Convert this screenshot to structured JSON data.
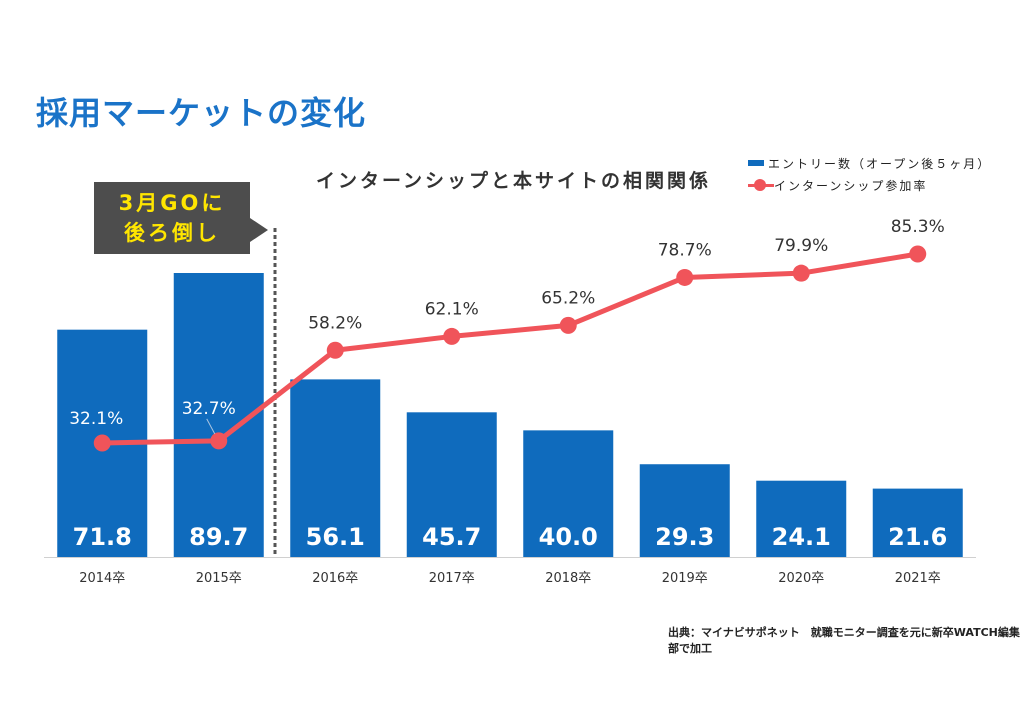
{
  "page": {
    "title": "採用マーケットの変化",
    "source": "出典：マイナビサポネット　就職モニター調査を元に新卒WATCH編集部で加工"
  },
  "callout": {
    "line1": "3月GOに",
    "line2": "後ろ倒し"
  },
  "colors": {
    "bar": "#0f6bbd",
    "line": "#f0545a",
    "title": "#1a73c8",
    "callout_bg": "#4d4d4d",
    "callout_text": "#ffe600"
  },
  "chart_data": {
    "type": "bar",
    "title": "インターンシップと本サイトの相関関係",
    "categories": [
      "2014卒",
      "2015卒",
      "2016卒",
      "2017卒",
      "2018卒",
      "2019卒",
      "2020卒",
      "2021卒"
    ],
    "series": [
      {
        "name": "エントリー数（オープン後５ヶ月）",
        "type": "bar",
        "values": [
          71.8,
          89.7,
          56.1,
          45.7,
          40.0,
          29.3,
          24.1,
          21.6
        ],
        "labels": [
          "71.8",
          "89.7",
          "56.1",
          "45.7",
          "40.0",
          "29.3",
          "24.1",
          "21.6"
        ]
      },
      {
        "name": "インターンシップ参加率",
        "type": "line",
        "values": [
          32.1,
          32.7,
          58.2,
          62.1,
          65.2,
          78.7,
          79.9,
          85.3
        ],
        "labels": [
          "32.1%",
          "32.7%",
          "58.2%",
          "62.1%",
          "65.2%",
          "78.7%",
          "79.9%",
          "85.3%"
        ]
      }
    ],
    "legend_position": "top-right",
    "grid": false,
    "annotation": "3月GOに後ろ倒し"
  }
}
